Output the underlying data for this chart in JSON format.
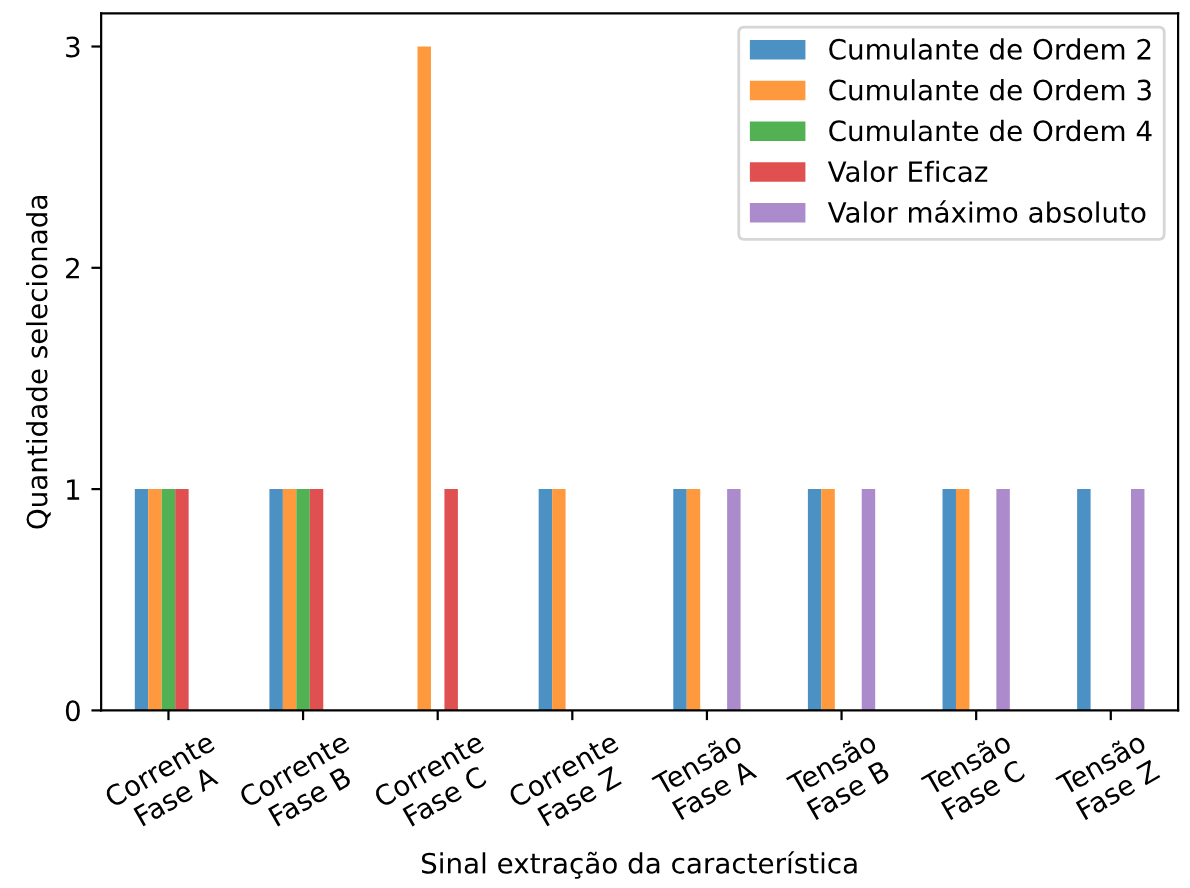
{
  "chart_data": {
    "type": "bar",
    "xlabel": "Sinal extração da característica",
    "ylabel": "Quantidade selecionada",
    "categories": [
      "Corrente\nFase A",
      "Corrente\nFase B",
      "Corrente\nFase C",
      "Corrente\nFase Z",
      "Tensão\nFase A",
      "Tensão\nFase B",
      "Tensão\nFase C",
      "Tensão\nFase Z"
    ],
    "series": [
      {
        "name": "Cumulante de Ordem 2",
        "color": "#4c91c3",
        "values": [
          1,
          1,
          0,
          1,
          1,
          1,
          1,
          1
        ]
      },
      {
        "name": "Cumulante de Ordem 3",
        "color": "#ff993e",
        "values": [
          1,
          1,
          3,
          1,
          1,
          1,
          1,
          0
        ]
      },
      {
        "name": "Cumulante de Ordem 4",
        "color": "#52b152",
        "values": [
          1,
          1,
          0,
          0,
          0,
          0,
          0,
          0
        ]
      },
      {
        "name": "Valor Eficaz",
        "color": "#e05050",
        "values": [
          1,
          1,
          1,
          0,
          0,
          0,
          0,
          0
        ]
      },
      {
        "name": "Valor máximo absoluto",
        "color": "#ab8bcb",
        "values": [
          0,
          0,
          0,
          0,
          1,
          1,
          1,
          1
        ]
      }
    ],
    "ylim": [
      0,
      3.15
    ],
    "yticks": [
      0,
      1,
      2,
      3
    ],
    "legend": "top right",
    "grid": false
  }
}
